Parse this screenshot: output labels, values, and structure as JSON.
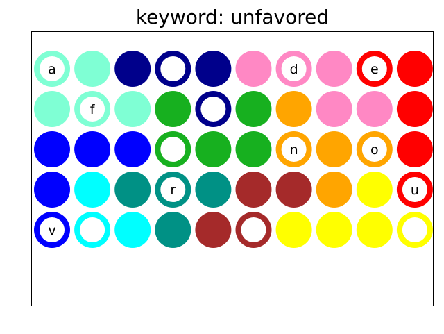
{
  "title": "keyword: unfavored",
  "colors": {
    "aquamarine": "#7fffd4",
    "navy": "#00008b",
    "pink": "#ff88c4",
    "red": "#ff0000",
    "green": "#17b01f",
    "orange": "#ffa500",
    "blue": "#0000ff",
    "cyan": "#00ffff",
    "teal": "#009185",
    "brown": "#a52a2a",
    "yellow": "#ffff00"
  },
  "grid": [
    [
      {
        "color": "aquamarine",
        "ring": true,
        "letter": "a"
      },
      {
        "color": "aquamarine"
      },
      {
        "color": "navy"
      },
      {
        "color": "navy",
        "ring": true
      },
      {
        "color": "navy"
      },
      {
        "color": "pink"
      },
      {
        "color": "pink",
        "ring": true,
        "letter": "d"
      },
      {
        "color": "pink"
      },
      {
        "color": "red",
        "ring": true,
        "letter": "e"
      },
      {
        "color": "red"
      }
    ],
    [
      {
        "color": "aquamarine"
      },
      {
        "color": "aquamarine",
        "ring": true,
        "letter": "f"
      },
      {
        "color": "aquamarine"
      },
      {
        "color": "green"
      },
      {
        "color": "navy",
        "ring": true
      },
      {
        "color": "green"
      },
      {
        "color": "orange"
      },
      {
        "color": "pink"
      },
      {
        "color": "pink"
      },
      {
        "color": "red"
      }
    ],
    [
      {
        "color": "blue"
      },
      {
        "color": "blue"
      },
      {
        "color": "blue"
      },
      {
        "color": "green",
        "ring": true
      },
      {
        "color": "green"
      },
      {
        "color": "green"
      },
      {
        "color": "orange",
        "ring": true,
        "letter": "n"
      },
      {
        "color": "orange"
      },
      {
        "color": "orange",
        "ring": true,
        "letter": "o"
      },
      {
        "color": "red"
      }
    ],
    [
      {
        "color": "blue"
      },
      {
        "color": "cyan"
      },
      {
        "color": "teal"
      },
      {
        "color": "teal",
        "ring": true,
        "letter": "r"
      },
      {
        "color": "teal"
      },
      {
        "color": "brown"
      },
      {
        "color": "brown"
      },
      {
        "color": "orange"
      },
      {
        "color": "yellow"
      },
      {
        "color": "red",
        "ring": true,
        "letter": "u"
      }
    ],
    [
      {
        "color": "blue",
        "ring": true,
        "letter": "v"
      },
      {
        "color": "cyan",
        "ring": true
      },
      {
        "color": "cyan"
      },
      {
        "color": "teal"
      },
      {
        "color": "brown"
      },
      {
        "color": "brown",
        "ring": true
      },
      {
        "color": "yellow"
      },
      {
        "color": "yellow"
      },
      {
        "color": "yellow"
      },
      {
        "color": "yellow",
        "ring": true
      }
    ]
  ]
}
